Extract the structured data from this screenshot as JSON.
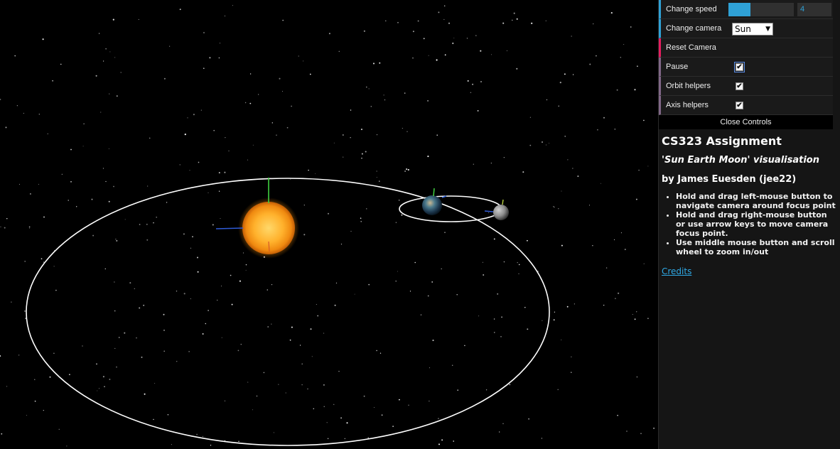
{
  "controls": {
    "speed": {
      "label": "Change speed",
      "value": "4",
      "fill_fraction": 0.34,
      "accent_color": "#2fa1d6"
    },
    "camera": {
      "label": "Change camera",
      "selected": "Sun"
    },
    "reset": {
      "label": "Reset Camera"
    },
    "pause": {
      "label": "Pause",
      "checked": true
    },
    "orbit_helpers": {
      "label": "Orbit helpers",
      "checked": true
    },
    "axis_helpers": {
      "label": "Axis helpers",
      "checked": true
    },
    "close_label": "Close Controls"
  },
  "info": {
    "title": "CS323 Assignment",
    "subtitle": "'Sun Earth Moon' visualisation",
    "author": "by James Euesden (jee22)",
    "instructions": [
      "Hold and drag left-mouse button to navigate camera around focus point",
      "Hold and drag right-mouse button or use arrow keys to move camera focus point.",
      "Use middle mouse button and scroll wheel to zoom in/out"
    ],
    "credits_label": "Credits",
    "link_color": "#2fa9e6"
  },
  "scene": {
    "bodies": [
      "sun",
      "earth",
      "moon"
    ],
    "background": "#000000",
    "orbit_color": "#ffffff",
    "icons": {
      "checkmark": "check-icon",
      "dropdown": "triangle-down-icon"
    }
  }
}
